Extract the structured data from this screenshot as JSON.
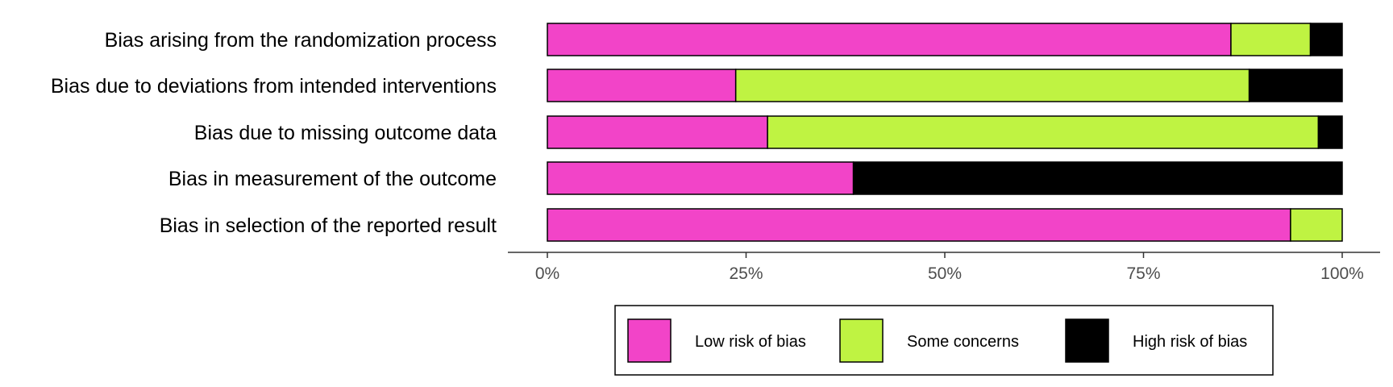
{
  "chart_data": {
    "type": "bar",
    "orientation": "horizontal",
    "stacked": true,
    "categories": [
      "Bias arising from the randomization process",
      "Bias due to deviations from intended interventions",
      "Bias due to missing outcome data",
      "Bias in measurement of the outcome",
      "Bias in selection of the reported result"
    ],
    "series": [
      {
        "name": "Low risk of bias",
        "color": "#f244c8",
        "values": [
          86,
          23.7,
          27.7,
          38.5,
          93.5
        ]
      },
      {
        "name": "Some concerns",
        "color": "#bff342",
        "values": [
          10,
          64.6,
          69.3,
          0,
          6.5
        ]
      },
      {
        "name": "High risk of bias",
        "color": "#000000",
        "values": [
          4,
          11.7,
          3,
          61.5,
          0
        ]
      }
    ],
    "x_ticks": [
      "0%",
      "25%",
      "50%",
      "75%",
      "100%"
    ],
    "xlim": [
      0,
      100
    ],
    "title": "",
    "xlabel": "",
    "ylabel": "",
    "legend_position": "bottom",
    "grid": false
  }
}
